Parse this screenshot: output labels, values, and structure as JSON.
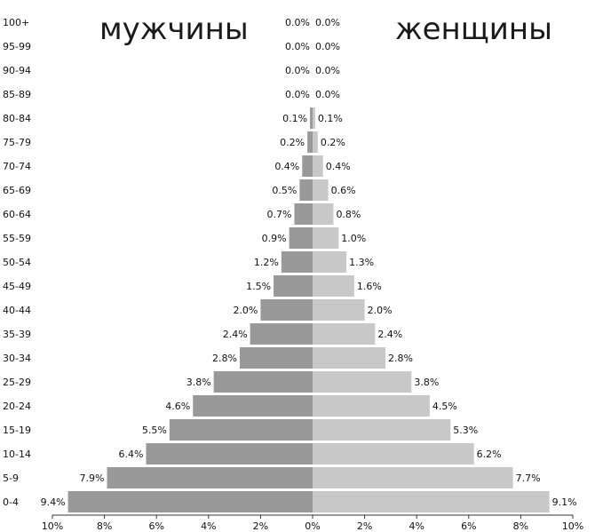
{
  "chart_data": {
    "type": "bar",
    "subtype": "population-pyramid",
    "left_title": "мужчины",
    "right_title": "женщины",
    "colors": {
      "male": "#999999",
      "female": "#c8c8c8"
    },
    "xlim": [
      -10,
      10
    ],
    "x_ticks": [
      "10%",
      "8%",
      "6%",
      "4%",
      "2%",
      "0%",
      "2%",
      "4%",
      "6%",
      "8%",
      "10%"
    ],
    "categories": [
      "100+",
      "95-99",
      "90-94",
      "85-89",
      "80-84",
      "75-79",
      "70-74",
      "65-69",
      "60-64",
      "55-59",
      "50-54",
      "45-49",
      "40-44",
      "35-39",
      "30-34",
      "25-29",
      "20-24",
      "15-19",
      "10-14",
      "5-9",
      "0-4"
    ],
    "series": [
      {
        "name": "мужчины",
        "values": [
          0.0,
          0.0,
          0.0,
          0.0,
          0.1,
          0.2,
          0.4,
          0.5,
          0.7,
          0.9,
          1.2,
          1.5,
          2.0,
          2.4,
          2.8,
          3.8,
          4.6,
          5.5,
          6.4,
          7.9,
          9.4
        ],
        "labels": [
          "0.0%",
          "0.0%",
          "0.0%",
          "0.0%",
          "0.1%",
          "0.2%",
          "0.4%",
          "0.5%",
          "0.7%",
          "0.9%",
          "1.2%",
          "1.5%",
          "2.0%",
          "2.4%",
          "2.8%",
          "3.8%",
          "4.6%",
          "5.5%",
          "6.4%",
          "7.9%",
          "9.4%"
        ]
      },
      {
        "name": "женщины",
        "values": [
          0.0,
          0.0,
          0.0,
          0.0,
          0.1,
          0.2,
          0.4,
          0.6,
          0.8,
          1.0,
          1.3,
          1.6,
          2.0,
          2.4,
          2.8,
          3.8,
          4.5,
          5.3,
          6.2,
          7.7,
          9.1
        ],
        "labels": [
          "0.0%",
          "0.0%",
          "0.0%",
          "0.0%",
          "0.1%",
          "0.2%",
          "0.4%",
          "0.6%",
          "0.8%",
          "1.0%",
          "1.3%",
          "1.6%",
          "2.0%",
          "2.4%",
          "2.8%",
          "3.8%",
          "4.5%",
          "5.3%",
          "6.2%",
          "7.7%",
          "9.1%"
        ]
      }
    ]
  }
}
